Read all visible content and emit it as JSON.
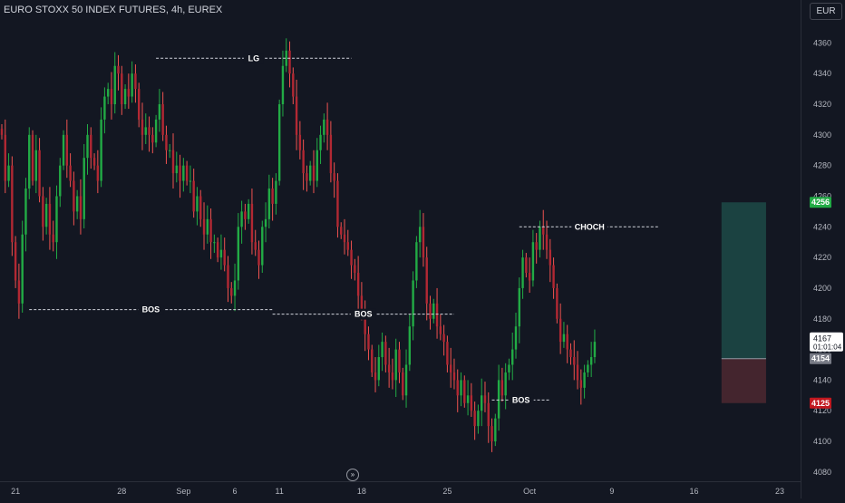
{
  "header": {
    "title": "EURO STOXX 50 INDEX FUTURES, 4h, EUREX",
    "currency": "EUR"
  },
  "colors": {
    "background": "#131722",
    "bull": "#26a69a",
    "bull_body": "#22ab45",
    "bear": "#ef5350",
    "bear_body": "#b22833",
    "target_zone": "#1d4a46",
    "stop_zone": "#4a2730",
    "target_tag": "#22ab45",
    "stop_tag": "#c2181f",
    "entry_tag": "#787b86"
  },
  "chart_data": {
    "type": "candlestick",
    "title": "EURO STOXX 50 INDEX FUTURES, 4h, EUREX",
    "ylim": [
      4074,
      4375
    ],
    "y_ticks": [
      4080,
      4100,
      4120,
      4140,
      4160,
      4180,
      4200,
      4220,
      4240,
      4260,
      4280,
      4300,
      4320,
      4340,
      4360
    ],
    "x_labels": [
      {
        "label": "21",
        "bar": 4
      },
      {
        "label": "28",
        "bar": 35
      },
      {
        "label": "Sep",
        "bar": 53
      },
      {
        "label": "6",
        "bar": 68
      },
      {
        "label": "11",
        "bar": 81
      },
      {
        "label": "18",
        "bar": 105
      },
      {
        "label": "25",
        "bar": 130
      },
      {
        "label": "Oct",
        "bar": 154
      },
      {
        "label": "9",
        "bar": 178
      },
      {
        "label": "16",
        "bar": 202
      },
      {
        "label": "23",
        "bar": 227
      }
    ],
    "bars_total": 235,
    "closes": [
      4300,
      4270,
      4280,
      4230,
      4205,
      4190,
      4235,
      4265,
      4300,
      4270,
      4290,
      4260,
      4240,
      4255,
      4235,
      4230,
      4260,
      4280,
      4300,
      4280,
      4270,
      4250,
      4260,
      4245,
      4285,
      4300,
      4285,
      4280,
      4270,
      4310,
      4325,
      4330,
      4320,
      4345,
      4340,
      4320,
      4330,
      4325,
      4340,
      4330,
      4310,
      4300,
      4305,
      4300,
      4295,
      4310,
      4320,
      4300,
      4290,
      4290,
      4275,
      4280,
      4270,
      4280,
      4270,
      4270,
      4250,
      4260,
      4245,
      4235,
      4245,
      4230,
      4230,
      4220,
      4225,
      4215,
      4200,
      4195,
      4205,
      4240,
      4250,
      4245,
      4255,
      4230,
      4225,
      4215,
      4240,
      4245,
      4265,
      4255,
      4270,
      4320,
      4345,
      4355,
      4340,
      4325,
      4300,
      4290,
      4275,
      4270,
      4280,
      4270,
      4290,
      4300,
      4310,
      4300,
      4275,
      4270,
      4240,
      4235,
      4230,
      4225,
      4215,
      4210,
      4195,
      4185,
      4170,
      4160,
      4145,
      4140,
      4155,
      4165,
      4150,
      4145,
      4140,
      4160,
      4145,
      4130,
      4150,
      4175,
      4205,
      4230,
      4240,
      4220,
      4190,
      4180,
      4190,
      4175,
      4170,
      4165,
      4150,
      4145,
      4140,
      4130,
      4140,
      4125,
      4130,
      4120,
      4110,
      4120,
      4130,
      4125,
      4110,
      4100,
      4115,
      4140,
      4130,
      4145,
      4150,
      4160,
      4175,
      4200,
      4220,
      4210,
      4205,
      4230,
      4225,
      4240,
      4235,
      4225,
      4215,
      4200,
      4180,
      4165,
      4170,
      4160,
      4155,
      4150,
      4140,
      4135,
      4145,
      4150,
      4155,
      4165
    ],
    "target": 4256,
    "entry": 4154,
    "stop": 4125,
    "last_price": 4167,
    "countdown": "01:01:04",
    "annotations": [
      {
        "label": "LG",
        "price": 4350
      },
      {
        "label": "CHOCH",
        "price": 4240
      },
      {
        "label": "BOS",
        "price": 4186
      },
      {
        "label": "BOS",
        "price": 4183
      },
      {
        "label": "BOS",
        "price": 4127
      }
    ]
  }
}
